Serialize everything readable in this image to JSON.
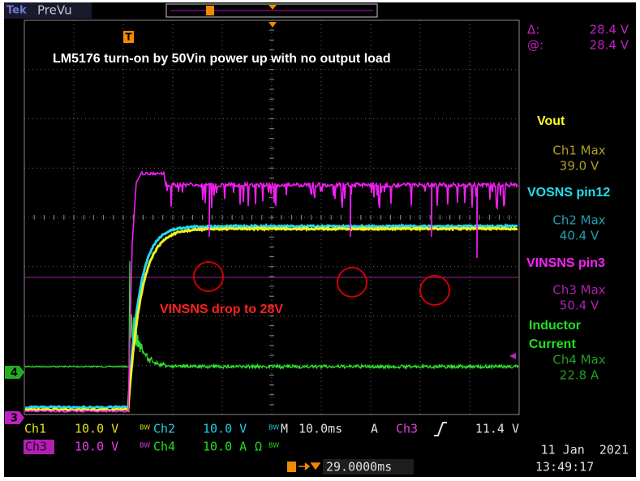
{
  "header": {
    "brand": "Tek",
    "mode": "PreVu"
  },
  "annotations": {
    "title": "LM5176 turn-on by 50Vin power up with no output load",
    "note": "VINSNS drop to 28V"
  },
  "markers": {
    "trigger": "T",
    "ch4": "4",
    "ch3": "3"
  },
  "cursor": {
    "delta_label": "Δ:",
    "delta": "28.4 V",
    "at_label": "@:",
    "at": "28.4 V"
  },
  "channels": [
    {
      "label": [
        "Vout"
      ],
      "measure": "Ch1 Max",
      "value": "39.0 V"
    },
    {
      "label": [
        "VOSNS pin12"
      ],
      "measure": "Ch2 Max",
      "value": "40.4 V"
    },
    {
      "label": [
        "VINSNS pin3"
      ],
      "measure": "Ch3 Max",
      "value": "50.4 V"
    },
    {
      "label": [
        "Inductor",
        "Current"
      ],
      "measure": "Ch4 Max",
      "value": "22.8 A"
    }
  ],
  "settings": {
    "ch1": {
      "name": "Ch1",
      "scale": "10.0 V",
      "flag": "BW"
    },
    "ch2": {
      "name": "Ch2",
      "scale": "10.0 V",
      "flag": "BW"
    },
    "ch3": {
      "name": "Ch3",
      "scale": "10.0 V",
      "flag": "BW"
    },
    "ch4": {
      "name": "Ch4",
      "scale": "10.0 A",
      "coupling": "Ω",
      "flag": "BW"
    },
    "timebase": {
      "label": "M",
      "scale": "10.0ms"
    },
    "trigger": {
      "mode": "A",
      "source": "Ch3",
      "level": "11.4 V"
    }
  },
  "footer": {
    "position": "29.0000ms",
    "date": "11 Jan  2021",
    "time": "13:49:17"
  }
}
